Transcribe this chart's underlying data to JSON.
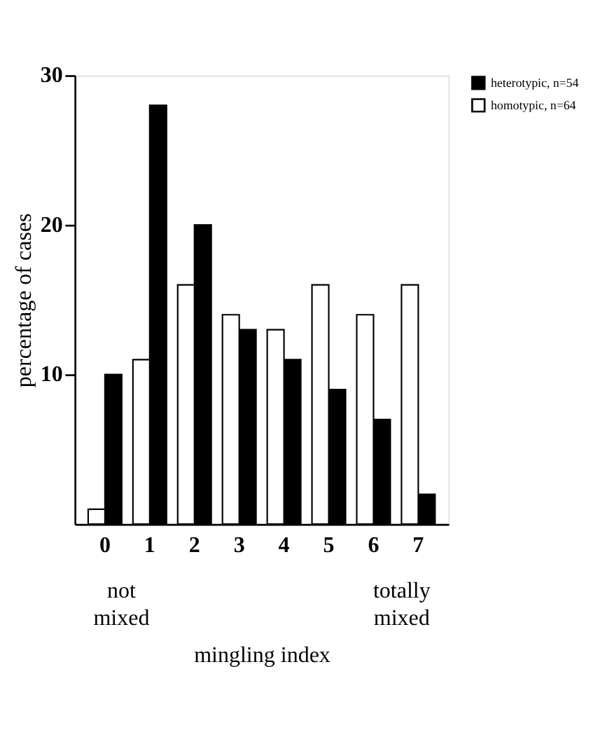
{
  "chart_data": {
    "type": "bar",
    "xlabel": "mingling index",
    "ylabel": "percentage of cases",
    "categories": [
      "0",
      "1",
      "2",
      "3",
      "4",
      "5",
      "6",
      "7"
    ],
    "series": [
      {
        "name": "heterotypic, n=54",
        "color": "#000000",
        "values": [
          10,
          28,
          20,
          13,
          11,
          9,
          7,
          2
        ]
      },
      {
        "name": "homotypic, n=64",
        "color": "#ffffff",
        "values": [
          1,
          11,
          16,
          14,
          13,
          16,
          14,
          16
        ]
      }
    ],
    "ylim": [
      0,
      30
    ],
    "yticks": [
      10,
      20,
      30
    ],
    "grid": false,
    "legend": "top right",
    "annotations": [
      "not mixed",
      "totally mixed"
    ]
  }
}
